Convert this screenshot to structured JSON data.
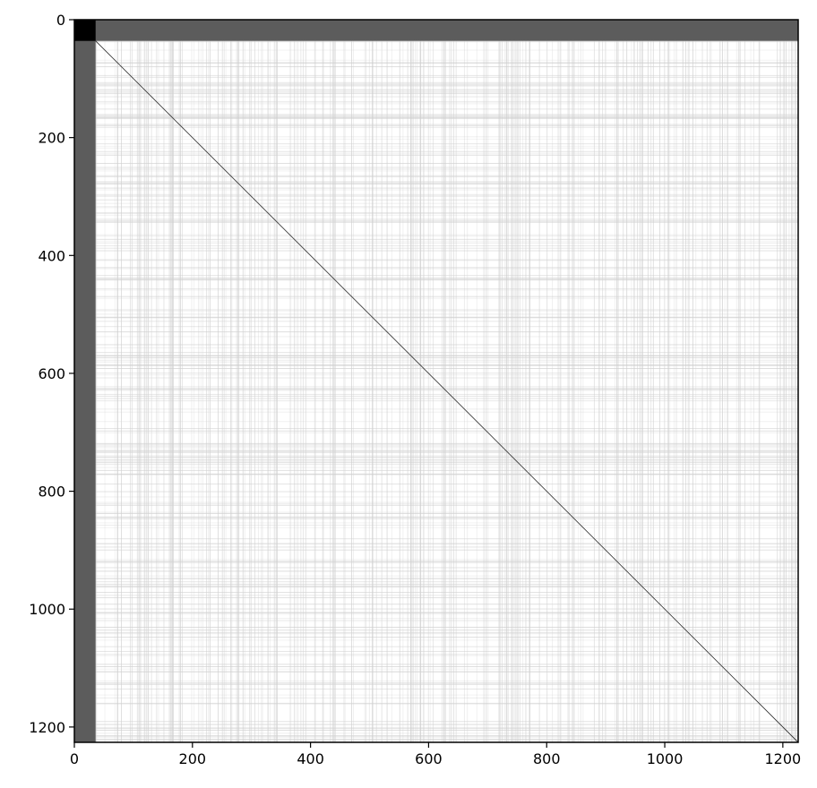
{
  "chart_data": {
    "type": "heatmap",
    "title": "",
    "xlabel": "",
    "ylabel": "",
    "n": 1226,
    "xlim": [
      0,
      1226
    ],
    "ylim": [
      1226,
      0
    ],
    "x_ticks": [
      0,
      200,
      400,
      600,
      800,
      1000,
      1200
    ],
    "y_ticks": [
      0,
      200,
      400,
      600,
      800,
      1000,
      1200
    ],
    "colormap": "gray_r",
    "colors": {
      "background": "#ffffff",
      "header_block": "#000000",
      "header_band": "#5c5c5c",
      "faint_lines": "#d0d0d0",
      "diagonal": "#2a2a2a",
      "axes": "#000000"
    },
    "structure": {
      "header_index_range": [
        0,
        36
      ],
      "header_corner_value": 1.0,
      "header_band_value": 0.64,
      "diagonal_value": 0.85,
      "background_value": 0.0,
      "faint_line_value": 0.15
    },
    "grid": false,
    "legend": "none"
  }
}
